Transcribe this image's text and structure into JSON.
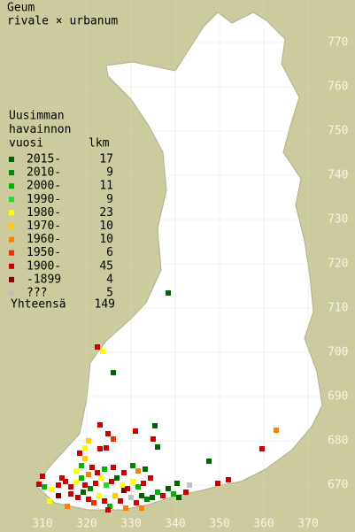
{
  "title": [
    "Geum",
    "rivale × urbanum"
  ],
  "legend": {
    "header": [
      "Uusimman",
      "havainnon",
      "vuosi"
    ],
    "count_header": "lkm",
    "rows": [
      {
        "label": "2015-",
        "count": 17,
        "color": "#006400"
      },
      {
        "label": "2010-",
        "count": 9,
        "color": "#008800"
      },
      {
        "label": "2000-",
        "count": 11,
        "color": "#00b400"
      },
      {
        "label": "1990-",
        "count": 9,
        "color": "#22dd22"
      },
      {
        "label": "1980-",
        "count": 23,
        "color": "#ffff00"
      },
      {
        "label": "1970-",
        "count": 10,
        "color": "#ffcc00"
      },
      {
        "label": "1960-",
        "count": 10,
        "color": "#ff8000"
      },
      {
        "label": "1950-",
        "count": 6,
        "color": "#ee3300"
      },
      {
        "label": "1900-",
        "count": 45,
        "color": "#cc0000"
      },
      {
        "label": "-1899",
        "count": 4,
        "color": "#800000"
      },
      {
        "label": "???",
        "count": 5,
        "color": "#c0c0c0"
      }
    ],
    "total": {
      "label": "Yhteensä",
      "count": 149
    }
  },
  "grid": {
    "northing": [
      770,
      760,
      750,
      740,
      730,
      720,
      710,
      700,
      690,
      680,
      670
    ],
    "easting": [
      310,
      320,
      330,
      340,
      350,
      360,
      370
    ]
  }
}
